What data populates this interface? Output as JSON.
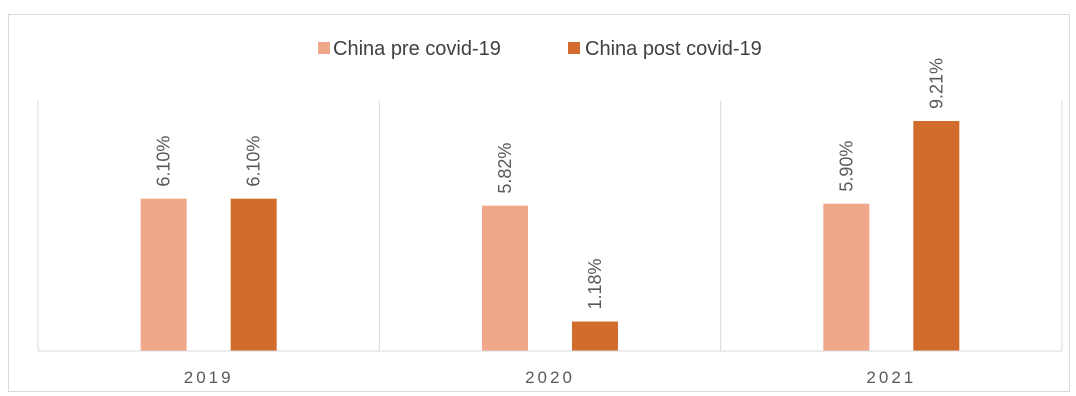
{
  "chart_data": {
    "type": "bar",
    "title": "",
    "xlabel": "",
    "ylabel": "",
    "categories": [
      "2019",
      "2020",
      "2021"
    ],
    "series": [
      {
        "name": "China pre covid-19",
        "values": [
          6.1,
          5.82,
          5.9
        ],
        "labels": [
          "6.10%",
          "5.82%",
          "5.90%"
        ],
        "color": "#f0a78a"
      },
      {
        "name": "China post covid-19",
        "values": [
          6.1,
          1.18,
          9.21
        ],
        "labels": [
          "6.10%",
          "1.18%",
          "9.21%"
        ],
        "color": "#d26c2c"
      }
    ],
    "ylim": [
      0,
      9.21
    ],
    "grid": false,
    "legend": "top-center"
  },
  "colors": {
    "axis": "#d9d9d9",
    "text": "#595959",
    "border": "#d9d9d9"
  }
}
